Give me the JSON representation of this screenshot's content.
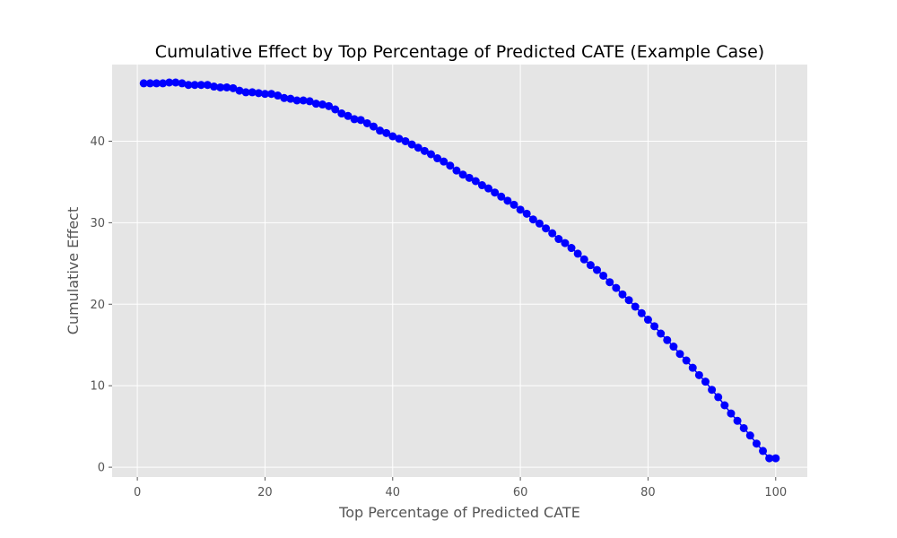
{
  "chart_data": {
    "type": "line",
    "title": "Cumulative Effect by Top Percentage of Predicted CATE (Example Case)",
    "xlabel": "Top Percentage of Predicted CATE",
    "ylabel": "Cumulative Effect",
    "xlim": [
      -3.95,
      104.95
    ],
    "ylim": [
      -1.2,
      49.4
    ],
    "xticks": [
      0,
      20,
      40,
      60,
      80,
      100
    ],
    "yticks": [
      0,
      10,
      20,
      30,
      40
    ],
    "grid": true,
    "marker": "circle",
    "colors": {
      "series": "#0000ff",
      "plot_bg": "#e5e5e5",
      "grid": "#ffffff",
      "text": "#555555"
    },
    "x": [
      1,
      2,
      3,
      4,
      5,
      6,
      7,
      8,
      9,
      10,
      11,
      12,
      13,
      14,
      15,
      16,
      17,
      18,
      19,
      20,
      21,
      22,
      23,
      24,
      25,
      26,
      27,
      28,
      29,
      30,
      31,
      32,
      33,
      34,
      35,
      36,
      37,
      38,
      39,
      40,
      41,
      42,
      43,
      44,
      45,
      46,
      47,
      48,
      49,
      50,
      51,
      52,
      53,
      54,
      55,
      56,
      57,
      58,
      59,
      60,
      61,
      62,
      63,
      64,
      65,
      66,
      67,
      68,
      69,
      70,
      71,
      72,
      73,
      74,
      75,
      76,
      77,
      78,
      79,
      80,
      81,
      82,
      83,
      84,
      85,
      86,
      87,
      88,
      89,
      90,
      91,
      92,
      93,
      94,
      95,
      96,
      97,
      98,
      99,
      100
    ],
    "series": [
      {
        "values": [
          47.1,
          47.1,
          47.1,
          47.1,
          47.2,
          47.2,
          47.1,
          46.9,
          46.9,
          46.9,
          46.9,
          46.7,
          46.6,
          46.6,
          46.5,
          46.2,
          46.0,
          46.0,
          45.9,
          45.8,
          45.8,
          45.6,
          45.3,
          45.2,
          45.0,
          45.0,
          44.9,
          44.6,
          44.5,
          44.3,
          43.9,
          43.4,
          43.1,
          42.7,
          42.6,
          42.2,
          41.8,
          41.3,
          41.0,
          40.6,
          40.3,
          40.0,
          39.6,
          39.2,
          38.8,
          38.4,
          37.9,
          37.5,
          37.0,
          36.4,
          35.9,
          35.5,
          35.1,
          34.6,
          34.2,
          33.7,
          33.2,
          32.7,
          32.2,
          31.6,
          31.1,
          30.4,
          29.9,
          29.3,
          28.7,
          28.0,
          27.5,
          26.9,
          26.2,
          25.5,
          24.8,
          24.2,
          23.5,
          22.7,
          22.0,
          21.2,
          20.5,
          19.7,
          18.9,
          18.1,
          17.3,
          16.4,
          15.6,
          14.8,
          13.9,
          13.1,
          12.2,
          11.3,
          10.5,
          9.5,
          8.6,
          7.6,
          6.6,
          5.7,
          4.8,
          3.9,
          2.9,
          2.0,
          1.1,
          1.1
        ]
      }
    ]
  }
}
